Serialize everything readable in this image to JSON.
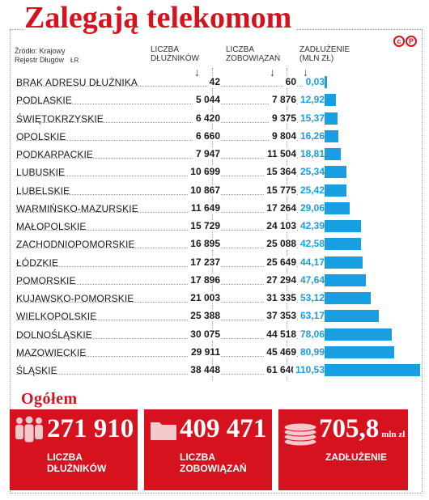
{
  "title": "Zalegają telekomom",
  "logo": [
    "c",
    "P"
  ],
  "source": {
    "line1": "Źródło: Krajowy",
    "line2": "Rejestr Długów",
    "credit": "ŁR"
  },
  "headers": {
    "debtors": [
      "LICZBA",
      "DŁUŻNIKÓW"
    ],
    "obligations": [
      "LICZBA",
      "ZOBOWIĄZAŃ"
    ],
    "debt": [
      "ZADŁUŻENIE",
      "(MLN ZŁ)"
    ]
  },
  "chart_data": {
    "type": "bar",
    "title": "Zalegają telekomom",
    "categories": [
      "BRAK ADRESU DŁUŻNIKA",
      "PODLASKIE",
      "ŚWIĘTOKRZYSKIE",
      "OPOLSKIE",
      "PODKARPACKIE",
      "LUBUSKIE",
      "LUBELSKIE",
      "WARMIŃSKO-MAZURSKIE",
      "MAŁOPOLSKIE",
      "ZACHODNIOPOMORSKIE",
      "ŁÓDZKIE",
      "POMORSKIE",
      "KUJAWSKO-POMORSKIE",
      "WIELKOPOLSKIE",
      "DOLNOŚLĄSKIE",
      "MAZOWIECKIE",
      "ŚLĄSKIE"
    ],
    "debtors_labels": [
      "42",
      "5 044",
      "6 420",
      "6 660",
      "7 947",
      "10 699",
      "10 867",
      "11 649",
      "15 729",
      "16 895",
      "17 237",
      "17 896",
      "21 003",
      "25 388",
      "30 075",
      "29 911",
      "38 448"
    ],
    "obligations_labels": [
      "60",
      "7 876",
      "9 375",
      "9 804",
      "11 504",
      "15 364",
      "15 775",
      "17 264",
      "24 103",
      "25 088",
      "25 649",
      "27 294",
      "31 335",
      "37 353",
      "44 518",
      "45 469",
      "61 640"
    ],
    "values_labels": [
      "0,03",
      "12,92",
      "15,37",
      "16,26",
      "18,81",
      "25,34",
      "25,42",
      "29,06",
      "42,39",
      "42,58",
      "44,17",
      "47,64",
      "53,12",
      "63,17",
      "78,06",
      "80,99",
      "110,53"
    ],
    "values": [
      0.03,
      12.92,
      15.37,
      16.26,
      18.81,
      25.34,
      25.42,
      29.06,
      42.39,
      42.58,
      44.17,
      47.64,
      53.12,
      63.17,
      78.06,
      80.99,
      110.53
    ],
    "ylabel": "ZADŁUŻENIE (MLN ZŁ)",
    "xlim": [
      0,
      110.53
    ],
    "bar_color": "#1a9ee2"
  },
  "totals": {
    "title": "Ogółem",
    "debtors": {
      "value": "271 910",
      "label": [
        "LICZBA",
        "DŁUŻNIKÓW"
      ]
    },
    "obligations": {
      "value": "409 471",
      "label": [
        "LICZBA",
        "ZOBOWIĄZAŃ"
      ]
    },
    "debt": {
      "value": "705,8",
      "unit": "mln zł",
      "label": "ZADŁUŻENIE"
    }
  },
  "colors": {
    "accent": "#d5121e",
    "bar": "#1a9ee2"
  }
}
